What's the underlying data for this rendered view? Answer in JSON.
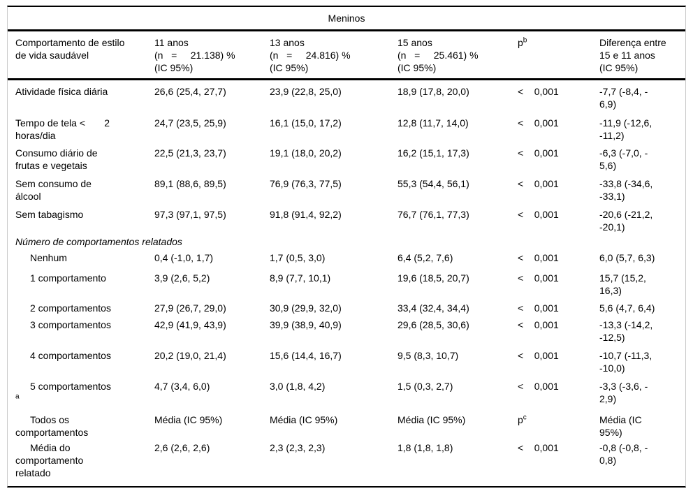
{
  "table": {
    "title": "Meninos",
    "header": [
      {
        "text": "Comportamento de estilo\nde vida saudável"
      },
      {
        "text": "11 anos\n(n   =     21.138) %\n(IC 95%)"
      },
      {
        "text": "13 anos\n(n   =     24.816) %\n(IC 95%)"
      },
      {
        "text": "15 anos\n(n   =     25.461) %\n(IC 95%)"
      },
      {
        "text": "p",
        "sup": "b"
      },
      {
        "text": "Diferença entre\n15 e 11 anos\n(IC 95%)"
      }
    ],
    "rows": [
      {
        "label": "Atividade física diária",
        "age11": "26,6 (25,4, 27,7)",
        "age13": "23,9 (22,8, 25,0)",
        "age15": "18,9 (17,8, 20,0)",
        "p": "<    0,001",
        "diff": "-7,7 (-8,4, -\n6,9)"
      },
      {
        "label": "Tempo de tela <       2\nhoras/dia",
        "age11": "24,7 (23,5, 25,9)",
        "age13": "16,1 (15,0, 17,2)",
        "age15": "12,8 (11,7, 14,0)",
        "p": "<    0,001",
        "diff": "-11,9 (-12,6,\n-11,2)"
      },
      {
        "label": "Consumo diário de\nfrutas e vegetais",
        "age11": "22,5 (21,3, 23,7)",
        "age13": "19,1 (18,0, 20,2)",
        "age15": "16,2 (15,1, 17,3)",
        "p": "<    0,001",
        "diff": "-6,3 (-7,0, -\n5,6)"
      },
      {
        "label": "Sem consumo de\nálcool",
        "age11": "89,1 (88,6, 89,5)",
        "age13": "76,9 (76,3, 77,5)",
        "age15": "55,3 (54,4, 56,1)",
        "p": "<    0,001",
        "diff": "-33,8 (-34,6,\n-33,1)"
      },
      {
        "label": "Sem tabagismo",
        "age11": "97,3 (97,1, 97,5)",
        "age13": "91,8 (91,4, 92,2)",
        "age15": "76,7 (76,1, 77,3)",
        "p": "<    0,001",
        "diff": "-20,6 (-21,2,\n-20,1)"
      },
      {
        "section": true,
        "label": "Número de comportamentos relatados"
      },
      {
        "indent": true,
        "label": "Nenhum",
        "age11": "0,4 (-1,0, 1,7)",
        "age13": "1,7 (0,5, 3,0)",
        "age15": "6,4 (5,2, 7,6)",
        "p": "<    0,001",
        "diff": "6,0 (5,7, 6,3)"
      },
      {
        "indent": true,
        "label": "1 comportamento",
        "age11": "3,9 (2,6, 5,2)",
        "age13": "8,9 (7,7, 10,1)",
        "age15": "19,6 (18,5, 20,7)",
        "p": "<    0,001",
        "diff": "15,7 (15,2,\n16,3)"
      },
      {
        "indent": true,
        "label": "2 comportamentos",
        "age11": "27,9 (26,7, 29,0)",
        "age13": "30,9 (29,9, 32,0)",
        "age15": "33,4 (32,4, 34,4)",
        "p": "<    0,001",
        "diff": "5,6 (4,7, 6,4)"
      },
      {
        "indent": true,
        "label": "3 comportamentos",
        "age11": "42,9 (41,9, 43,9)",
        "age13": "39,9 (38,9, 40,9)",
        "age15": "29,6 (28,5, 30,6)",
        "p": "<    0,001",
        "diff": "-13,3 (-14,2,\n-12,5)"
      },
      {
        "indent": true,
        "label": "4 comportamentos",
        "age11": "20,2 (19,0, 21,4)",
        "age13": "15,6 (14,4, 16,7)",
        "age15": "9,5 (8,3, 10,7)",
        "p": "<    0,001",
        "diff": "-10,7 (-11,3,\n-10,0)"
      },
      {
        "indent": true,
        "label": "5 comportamentos",
        "label_sup": "a",
        "age11": "4,7 (3,4, 6,0)",
        "age13": "3,0 (1,8, 4,2)",
        "age15": "1,5 (0,3, 2,7)",
        "p": "<    0,001",
        "diff": "-3,3 (-3,6, -\n2,9)"
      },
      {
        "indent": true,
        "label": "Todos os\ncomportamentos",
        "age11": "Média (IC 95%)",
        "age13": "Média (IC 95%)",
        "age15": "Média (IC 95%)",
        "p": {
          "text": "p",
          "sup": "c"
        },
        "diff": "Média (IC\n95%)"
      },
      {
        "indent": true,
        "label": "Média do\ncomportamento\nrelatado",
        "age11": "2,6 (2,6, 2,6)",
        "age13": "2,3 (2,3, 2,3)",
        "age15": "1,8 (1,8, 1,8)",
        "p": "<    0,001",
        "diff": "-0,8 (-0,8, -\n0,8)"
      }
    ]
  }
}
